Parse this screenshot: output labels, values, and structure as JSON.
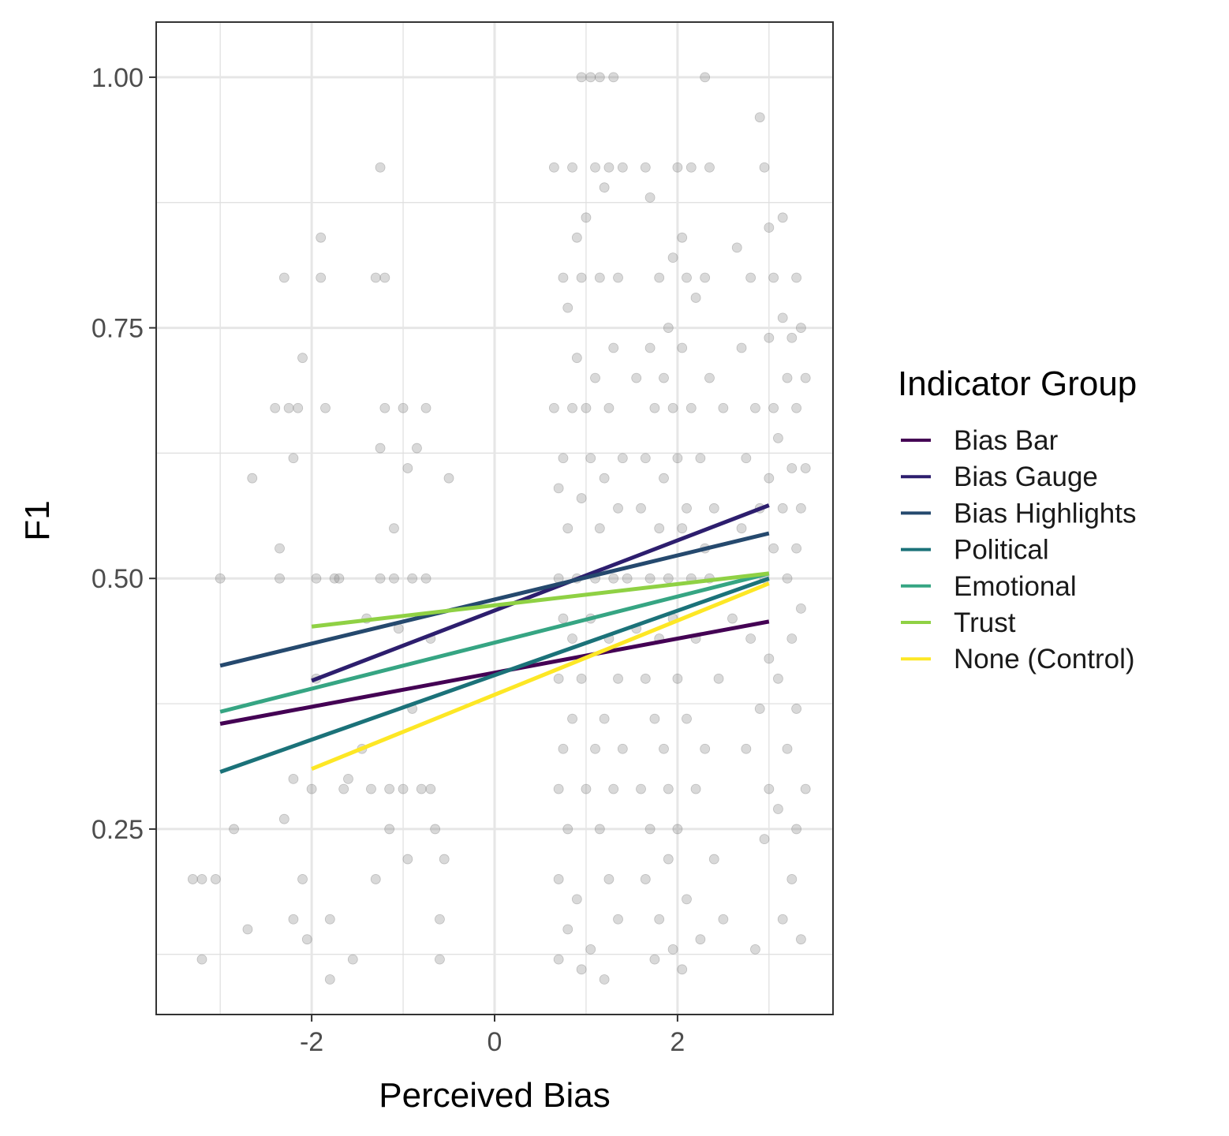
{
  "chart_data": {
    "type": "scatter",
    "title": "",
    "xlabel": "Perceived Bias",
    "ylabel": "F1",
    "xlim": [
      -3.7,
      3.7
    ],
    "ylim": [
      0.065,
      1.055
    ],
    "x_ticks": [
      -2,
      0,
      2
    ],
    "x_tick_labels": [
      "-2",
      "0",
      "2"
    ],
    "y_ticks": [
      0.25,
      0.5,
      0.75,
      1.0
    ],
    "y_tick_labels": [
      "0.25",
      "0.50",
      "0.75",
      "1.00"
    ],
    "grid": true,
    "legend": {
      "title": "Indicator Group",
      "placement": "right"
    },
    "series": [
      {
        "name": "Bias Bar",
        "color": "#440154",
        "x": [
          -3,
          3
        ],
        "y": [
          0.355,
          0.457
        ]
      },
      {
        "name": "Bias Gauge",
        "color": "#2D1E6E",
        "x": [
          -2,
          3
        ],
        "y": [
          0.398,
          0.573
        ]
      },
      {
        "name": "Bias Highlights",
        "color": "#25496E",
        "x": [
          -3,
          3
        ],
        "y": [
          0.413,
          0.545
        ]
      },
      {
        "name": "Political",
        "color": "#1B7279",
        "x": [
          -3,
          3
        ],
        "y": [
          0.307,
          0.5
        ]
      },
      {
        "name": "Emotional",
        "color": "#36A583",
        "x": [
          -3,
          3
        ],
        "y": [
          0.367,
          0.505
        ]
      },
      {
        "name": "Trust",
        "color": "#8FD144",
        "x": [
          -2,
          3
        ],
        "y": [
          0.452,
          0.505
        ]
      },
      {
        "name": "None (Control)",
        "color": "#FDE725",
        "x": [
          -2,
          3
        ],
        "y": [
          0.31,
          0.495
        ]
      }
    ],
    "scatter_points": [
      [
        -3.3,
        0.2
      ],
      [
        -3.2,
        0.2
      ],
      [
        -3.05,
        0.2
      ],
      [
        -3.2,
        0.12
      ],
      [
        -3.0,
        0.5
      ],
      [
        -2.85,
        0.25
      ],
      [
        -2.7,
        0.15
      ],
      [
        -2.65,
        0.6
      ],
      [
        -2.4,
        0.67
      ],
      [
        -2.35,
        0.5
      ],
      [
        -2.35,
        0.53
      ],
      [
        -2.3,
        0.8
      ],
      [
        -2.3,
        0.26
      ],
      [
        -2.25,
        0.67
      ],
      [
        -2.2,
        0.3
      ],
      [
        -2.2,
        0.16
      ],
      [
        -2.2,
        0.62
      ],
      [
        -2.15,
        0.67
      ],
      [
        -2.1,
        0.72
      ],
      [
        -2.1,
        0.2
      ],
      [
        -2.05,
        0.14
      ],
      [
        -2.0,
        0.29
      ],
      [
        -1.95,
        0.5
      ],
      [
        -1.95,
        0.4
      ],
      [
        -1.9,
        0.84
      ],
      [
        -1.9,
        0.8
      ],
      [
        -1.85,
        0.67
      ],
      [
        -1.8,
        0.16
      ],
      [
        -1.8,
        0.1
      ],
      [
        -1.75,
        0.5
      ],
      [
        -1.7,
        0.5
      ],
      [
        -1.65,
        0.29
      ],
      [
        -1.6,
        0.3
      ],
      [
        -1.55,
        0.12
      ],
      [
        -1.45,
        0.33
      ],
      [
        -1.4,
        0.46
      ],
      [
        -1.35,
        0.29
      ],
      [
        -1.3,
        0.2
      ],
      [
        -1.3,
        0.8
      ],
      [
        -1.25,
        0.91
      ],
      [
        -1.25,
        0.63
      ],
      [
        -1.25,
        0.5
      ],
      [
        -1.2,
        0.67
      ],
      [
        -1.2,
        0.8
      ],
      [
        -1.15,
        0.25
      ],
      [
        -1.15,
        0.29
      ],
      [
        -1.1,
        0.55
      ],
      [
        -1.1,
        0.5
      ],
      [
        -1.05,
        0.45
      ],
      [
        -1.0,
        0.29
      ],
      [
        -1.0,
        0.67
      ],
      [
        -0.95,
        0.61
      ],
      [
        -0.95,
        0.22
      ],
      [
        -0.9,
        0.5
      ],
      [
        -0.9,
        0.37
      ],
      [
        -0.85,
        0.63
      ],
      [
        -0.8,
        0.29
      ],
      [
        -0.75,
        0.67
      ],
      [
        -0.75,
        0.5
      ],
      [
        -0.7,
        0.29
      ],
      [
        -0.7,
        0.44
      ],
      [
        -0.65,
        0.25
      ],
      [
        -0.6,
        0.16
      ],
      [
        -0.6,
        0.12
      ],
      [
        -0.55,
        0.22
      ],
      [
        -0.5,
        0.6
      ],
      [
        0.65,
        0.91
      ],
      [
        0.65,
        0.67
      ],
      [
        0.7,
        0.59
      ],
      [
        0.7,
        0.5
      ],
      [
        0.7,
        0.4
      ],
      [
        0.7,
        0.29
      ],
      [
        0.7,
        0.2
      ],
      [
        0.7,
        0.12
      ],
      [
        0.75,
        0.8
      ],
      [
        0.75,
        0.62
      ],
      [
        0.75,
        0.46
      ],
      [
        0.75,
        0.33
      ],
      [
        0.8,
        0.77
      ],
      [
        0.8,
        0.55
      ],
      [
        0.8,
        0.25
      ],
      [
        0.8,
        0.15
      ],
      [
        0.85,
        0.91
      ],
      [
        0.85,
        0.67
      ],
      [
        0.85,
        0.44
      ],
      [
        0.85,
        0.36
      ],
      [
        0.9,
        0.84
      ],
      [
        0.9,
        0.72
      ],
      [
        0.9,
        0.5
      ],
      [
        0.9,
        0.18
      ],
      [
        0.95,
        1.0
      ],
      [
        0.95,
        0.8
      ],
      [
        0.95,
        0.58
      ],
      [
        0.95,
        0.4
      ],
      [
        0.95,
        0.11
      ],
      [
        1.0,
        0.86
      ],
      [
        1.0,
        0.67
      ],
      [
        1.0,
        0.29
      ],
      [
        1.05,
        1.0
      ],
      [
        1.05,
        0.62
      ],
      [
        1.05,
        0.46
      ],
      [
        1.05,
        0.13
      ],
      [
        1.1,
        0.91
      ],
      [
        1.1,
        0.7
      ],
      [
        1.1,
        0.5
      ],
      [
        1.1,
        0.33
      ],
      [
        1.15,
        1.0
      ],
      [
        1.15,
        0.8
      ],
      [
        1.15,
        0.55
      ],
      [
        1.15,
        0.25
      ],
      [
        1.2,
        0.89
      ],
      [
        1.2,
        0.6
      ],
      [
        1.2,
        0.36
      ],
      [
        1.2,
        0.1
      ],
      [
        1.25,
        0.91
      ],
      [
        1.25,
        0.67
      ],
      [
        1.25,
        0.44
      ],
      [
        1.25,
        0.2
      ],
      [
        1.3,
        1.0
      ],
      [
        1.3,
        0.73
      ],
      [
        1.3,
        0.5
      ],
      [
        1.3,
        0.29
      ],
      [
        1.35,
        0.8
      ],
      [
        1.35,
        0.57
      ],
      [
        1.35,
        0.4
      ],
      [
        1.35,
        0.16
      ],
      [
        1.4,
        0.91
      ],
      [
        1.4,
        0.62
      ],
      [
        1.4,
        0.33
      ],
      [
        1.45,
        0.5
      ],
      [
        1.55,
        0.7
      ],
      [
        1.55,
        0.45
      ],
      [
        1.6,
        0.57
      ],
      [
        1.6,
        0.29
      ],
      [
        1.65,
        0.91
      ],
      [
        1.65,
        0.62
      ],
      [
        1.65,
        0.4
      ],
      [
        1.65,
        0.2
      ],
      [
        1.7,
        0.88
      ],
      [
        1.7,
        0.73
      ],
      [
        1.7,
        0.5
      ],
      [
        1.7,
        0.25
      ],
      [
        1.75,
        0.67
      ],
      [
        1.75,
        0.36
      ],
      [
        1.75,
        0.12
      ],
      [
        1.8,
        0.8
      ],
      [
        1.8,
        0.55
      ],
      [
        1.8,
        0.44
      ],
      [
        1.8,
        0.16
      ],
      [
        1.85,
        0.7
      ],
      [
        1.85,
        0.6
      ],
      [
        1.85,
        0.33
      ],
      [
        1.9,
        0.75
      ],
      [
        1.9,
        0.5
      ],
      [
        1.9,
        0.29
      ],
      [
        1.9,
        0.22
      ],
      [
        1.95,
        0.82
      ],
      [
        1.95,
        0.67
      ],
      [
        1.95,
        0.46
      ],
      [
        1.95,
        0.13
      ],
      [
        2.0,
        0.91
      ],
      [
        2.0,
        0.62
      ],
      [
        2.0,
        0.4
      ],
      [
        2.0,
        0.25
      ],
      [
        2.05,
        0.84
      ],
      [
        2.05,
        0.73
      ],
      [
        2.05,
        0.55
      ],
      [
        2.05,
        0.11
      ],
      [
        2.1,
        0.8
      ],
      [
        2.1,
        0.57
      ],
      [
        2.1,
        0.36
      ],
      [
        2.1,
        0.18
      ],
      [
        2.15,
        0.91
      ],
      [
        2.15,
        0.67
      ],
      [
        2.15,
        0.5
      ],
      [
        2.2,
        0.78
      ],
      [
        2.2,
        0.44
      ],
      [
        2.2,
        0.29
      ],
      [
        2.25,
        0.62
      ],
      [
        2.25,
        0.14
      ],
      [
        2.3,
        1.0
      ],
      [
        2.3,
        0.8
      ],
      [
        2.3,
        0.53
      ],
      [
        2.3,
        0.33
      ],
      [
        2.35,
        0.91
      ],
      [
        2.35,
        0.7
      ],
      [
        2.35,
        0.5
      ],
      [
        2.4,
        0.57
      ],
      [
        2.4,
        0.22
      ],
      [
        2.45,
        0.4
      ],
      [
        2.5,
        0.67
      ],
      [
        2.5,
        0.16
      ],
      [
        2.6,
        0.46
      ],
      [
        2.65,
        0.83
      ],
      [
        2.7,
        0.73
      ],
      [
        2.7,
        0.55
      ],
      [
        2.75,
        0.62
      ],
      [
        2.75,
        0.33
      ],
      [
        2.8,
        0.8
      ],
      [
        2.8,
        0.44
      ],
      [
        2.85,
        0.67
      ],
      [
        2.85,
        0.13
      ],
      [
        2.9,
        0.96
      ],
      [
        2.9,
        0.57
      ],
      [
        2.9,
        0.37
      ],
      [
        2.95,
        0.91
      ],
      [
        2.95,
        0.5
      ],
      [
        2.95,
        0.24
      ],
      [
        3.0,
        0.85
      ],
      [
        3.0,
        0.74
      ],
      [
        3.0,
        0.6
      ],
      [
        3.0,
        0.42
      ],
      [
        3.0,
        0.29
      ],
      [
        3.05,
        0.8
      ],
      [
        3.05,
        0.67
      ],
      [
        3.05,
        0.53
      ],
      [
        3.1,
        0.64
      ],
      [
        3.1,
        0.4
      ],
      [
        3.1,
        0.27
      ],
      [
        3.15,
        0.86
      ],
      [
        3.15,
        0.76
      ],
      [
        3.15,
        0.57
      ],
      [
        3.15,
        0.16
      ],
      [
        3.2,
        0.7
      ],
      [
        3.2,
        0.5
      ],
      [
        3.2,
        0.33
      ],
      [
        3.25,
        0.74
      ],
      [
        3.25,
        0.61
      ],
      [
        3.25,
        0.44
      ],
      [
        3.25,
        0.2
      ],
      [
        3.3,
        0.8
      ],
      [
        3.3,
        0.67
      ],
      [
        3.3,
        0.53
      ],
      [
        3.3,
        0.37
      ],
      [
        3.3,
        0.25
      ],
      [
        3.35,
        0.75
      ],
      [
        3.35,
        0.57
      ],
      [
        3.35,
        0.47
      ],
      [
        3.35,
        0.14
      ],
      [
        3.4,
        0.7
      ],
      [
        3.4,
        0.61
      ],
      [
        3.4,
        0.29
      ]
    ]
  }
}
